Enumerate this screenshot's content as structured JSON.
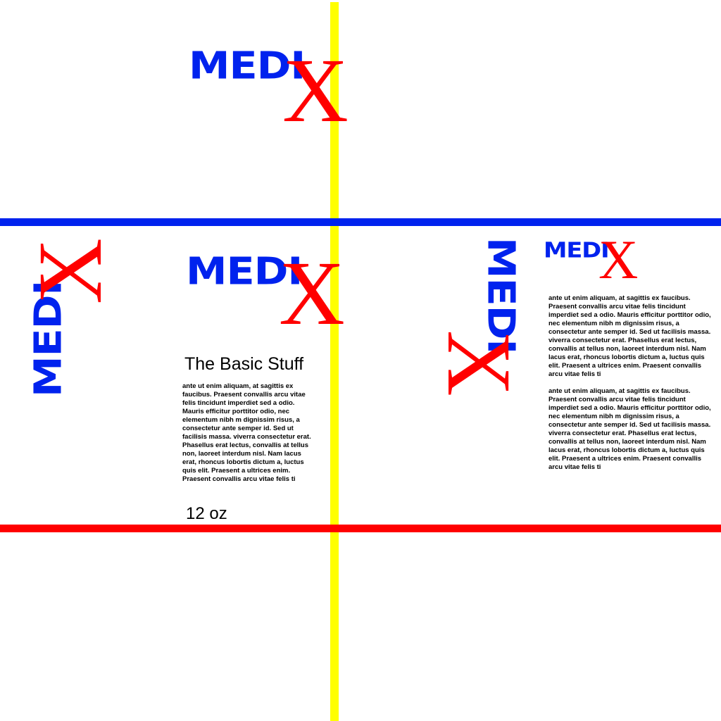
{
  "colors": {
    "brand_blue": "#0022ee",
    "brand_red": "#ff0000",
    "guide_yellow": "#ffff00",
    "guide_blue": "#0022ee",
    "guide_red": "#ff0000"
  },
  "logo": {
    "medi": "MEDI",
    "x": "X"
  },
  "panel": {
    "title": "The Basic Stuff",
    "body": "ante ut enim aliquam, at sagittis ex faucibus. Praesent convallis arcu vitae felis tincidunt imperdiet sed a odio. Mauris efficitur porttitor odio, nec elementum nibh m dignissim risus, a consectetur ante semper id. Sed ut facilisis massa.  viverra consectetur erat. Phasellus erat lectus, convallis at tellus non, laoreet interdum nisl. Nam lacus erat, rhoncus lobortis dictum a, luctus quis elit. Praesent a ultrices enim. Praesent convallis arcu vitae felis ti",
    "size": "12 oz"
  },
  "side_panel": {
    "body_1": "ante ut enim aliquam, at sagittis ex faucibus. Praesent convallis arcu vitae felis tincidunt imperdiet sed a odio. Mauris efficitur porttitor odio, nec elementum nibh m dignissim risus, a consectetur ante semper id. Sed ut facilisis massa.  viverra consectetur erat. Phasellus erat lectus, convallis at tellus non, laoreet interdum nisl. Nam lacus erat, rhoncus lobortis dictum a, luctus quis elit. Praesent a ultrices enim. Praesent convallis arcu vitae felis ti",
    "body_2": "ante ut enim aliquam, at sagittis ex faucibus. Praesent convallis arcu vitae felis tincidunt imperdiet sed a odio. Mauris efficitur porttitor odio, nec elementum nibh m dignissim risus, a consectetur ante semper id. Sed ut facilisis massa.  viverra consectetur erat. Phasellus erat lectus, convallis at tellus non, laoreet interdum nisl. Nam lacus erat, rhoncus lobortis dictum a, luctus quis elit. Praesent a ultrices enim. Praesent convallis arcu vitae felis ti"
  }
}
